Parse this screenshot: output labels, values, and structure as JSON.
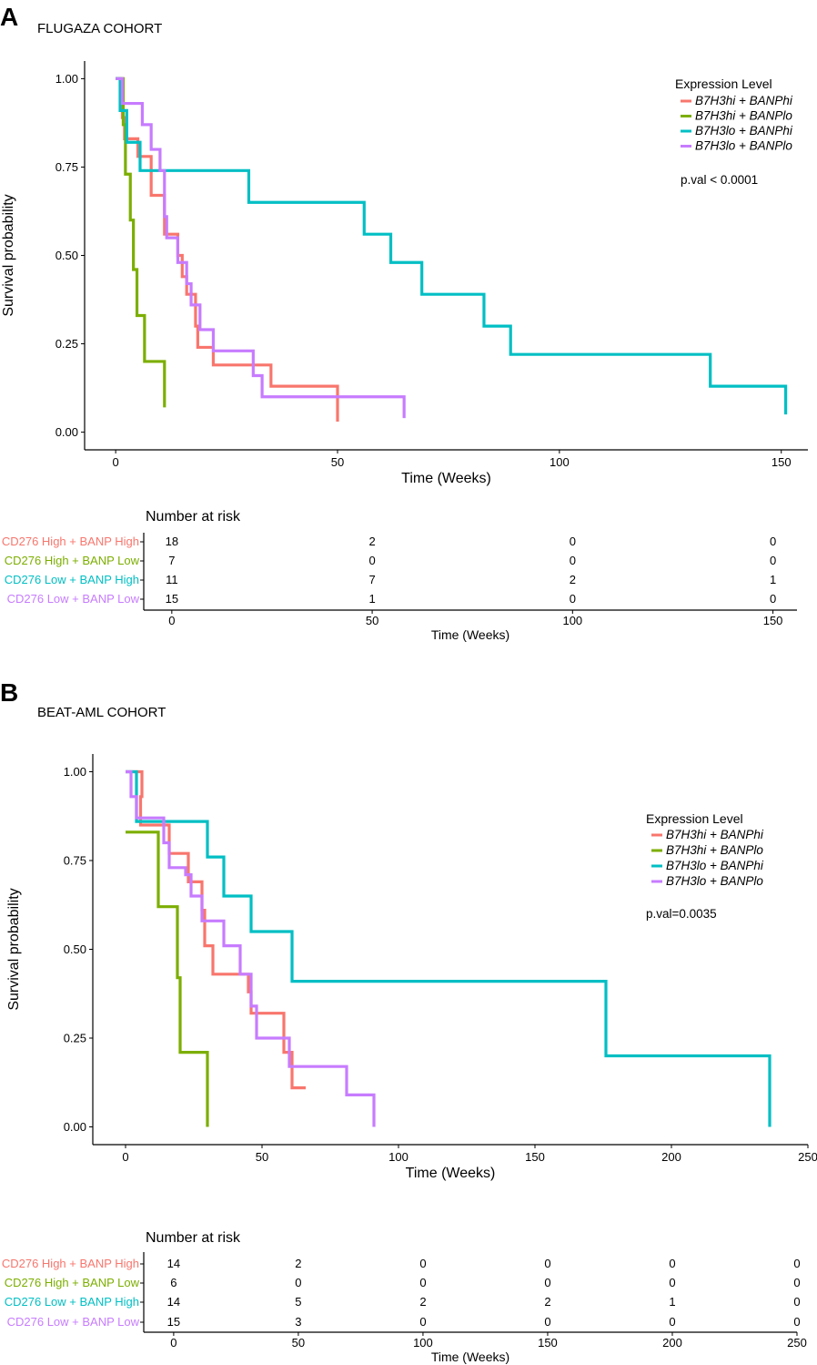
{
  "colors": {
    "B7H3hi_BANPhi": "#f8766d",
    "B7H3hi_BANPlo": "#7cae00",
    "B7H3lo_BANPhi": "#00bfc4",
    "B7H3lo_BANPlo": "#c77cff"
  },
  "chart_data": [
    {
      "panel": "A",
      "type": "line",
      "title": "FLUGAZA COHORT",
      "xlabel": "Time (Weeks)",
      "ylabel": "Survival probability",
      "xlim": [
        -7,
        156
      ],
      "ylim": [
        -0.05,
        1.05
      ],
      "xticks": [
        0,
        50,
        100,
        150
      ],
      "yticks": [
        "0.00",
        "0.25",
        "0.50",
        "0.75",
        "1.00"
      ],
      "legend": {
        "title": "Expression Level",
        "position": "top-right",
        "entries": [
          "B7H3hi + BANPhi",
          "B7H3hi + BANPlo",
          "B7H3lo + BANPhi",
          "B7H3lo + BANPlo"
        ]
      },
      "pval": "p.val < 0.0001",
      "series": [
        {
          "name": "B7H3hi + BANPhi",
          "color_key": "B7H3hi_BANPhi",
          "steps": [
            [
              0,
              1.0
            ],
            [
              1.5,
              0.89
            ],
            [
              2,
              0.83
            ],
            [
              5,
              0.78
            ],
            [
              8,
              0.67
            ],
            [
              11,
              0.56
            ],
            [
              14,
              0.5
            ],
            [
              15,
              0.44
            ],
            [
              16,
              0.39
            ],
            [
              18,
              0.3
            ],
            [
              18.5,
              0.24
            ],
            [
              22,
              0.19
            ],
            [
              35,
              0.13
            ],
            [
              50,
              0.13
            ]
          ],
          "end_x": 50,
          "end_y": 0.03
        },
        {
          "name": "B7H3hi + BANPlo",
          "color_key": "B7H3hi_BANPlo",
          "steps": [
            [
              0,
              1.0
            ],
            [
              1.7,
              0.87
            ],
            [
              2.2,
              0.73
            ],
            [
              3.3,
              0.6
            ],
            [
              4,
              0.46
            ],
            [
              4.8,
              0.33
            ],
            [
              6.5,
              0.2
            ],
            [
              11,
              0.2
            ]
          ],
          "end_x": 11,
          "end_y": 0.07
        },
        {
          "name": "B7H3lo + BANPhi",
          "color_key": "B7H3lo_BANPhi",
          "steps": [
            [
              0,
              1.0
            ],
            [
              1,
              0.91
            ],
            [
              2.5,
              0.82
            ],
            [
              5.5,
              0.74
            ],
            [
              30,
              0.65
            ],
            [
              56,
              0.56
            ],
            [
              62,
              0.48
            ],
            [
              69,
              0.39
            ],
            [
              83,
              0.3
            ],
            [
              89,
              0.22
            ],
            [
              134,
              0.13
            ],
            [
              151,
              0.13
            ]
          ],
          "end_x": 151,
          "end_y": 0.05
        },
        {
          "name": "B7H3lo + BANPlo",
          "color_key": "B7H3lo_BANPlo",
          "steps": [
            [
              0,
              1.0
            ],
            [
              1.5,
              0.93
            ],
            [
              6,
              0.87
            ],
            [
              8,
              0.8
            ],
            [
              10,
              0.74
            ],
            [
              11,
              0.61
            ],
            [
              11.5,
              0.55
            ],
            [
              14,
              0.48
            ],
            [
              16,
              0.42
            ],
            [
              17,
              0.36
            ],
            [
              19,
              0.29
            ],
            [
              22,
              0.23
            ],
            [
              31,
              0.16
            ],
            [
              33,
              0.1
            ],
            [
              65,
              0.1
            ]
          ],
          "end_x": 65,
          "end_y": 0.04
        }
      ]
    },
    {
      "panel": "B",
      "type": "line",
      "title": "BEAT-AML COHORT",
      "xlabel": "Time (Weeks)",
      "ylabel": "Survival probability",
      "xlim": [
        -12,
        250
      ],
      "ylim": [
        -0.05,
        1.05
      ],
      "xticks": [
        0,
        50,
        100,
        150,
        200,
        250
      ],
      "yticks": [
        "0.00",
        "0.25",
        "0.50",
        "0.75",
        "1.00"
      ],
      "legend": {
        "title": "Expression Level",
        "position": "right",
        "entries": [
          "B7H3hi + BANPhi",
          "B7H3hi + BANPlo",
          "B7H3lo + BANPhi",
          "B7H3lo + BANPlo"
        ]
      },
      "pval": "p.val=0.0035",
      "series": [
        {
          "name": "B7H3hi + BANPhi",
          "color_key": "B7H3hi_BANPhi",
          "steps": [
            [
              0,
              1.0
            ],
            [
              6,
              0.93
            ],
            [
              5.5,
              0.85
            ],
            [
              16,
              0.77
            ],
            [
              23,
              0.69
            ],
            [
              28,
              0.61
            ],
            [
              29,
              0.51
            ],
            [
              32,
              0.43
            ],
            [
              45,
              0.38
            ],
            [
              46,
              0.32
            ],
            [
              58,
              0.21
            ],
            [
              61,
              0.11
            ],
            [
              66,
              0.11
            ]
          ],
          "end_x": 66,
          "end_y": 0.11
        },
        {
          "name": "B7H3hi + BANPlo",
          "color_key": "B7H3hi_BANPlo",
          "steps": [
            [
              0,
              0.83
            ],
            [
              12,
              0.62
            ],
            [
              19,
              0.42
            ],
            [
              20,
              0.21
            ],
            [
              30,
              0.21
            ]
          ],
          "end_x": 30,
          "end_y": 0.0
        },
        {
          "name": "B7H3lo + BANPhi",
          "color_key": "B7H3lo_BANPhi",
          "steps": [
            [
              0,
              1.0
            ],
            [
              4,
              0.86
            ],
            [
              30,
              0.76
            ],
            [
              36,
              0.65
            ],
            [
              46,
              0.55
            ],
            [
              61,
              0.41
            ],
            [
              176,
              0.2
            ],
            [
              236,
              0.2
            ]
          ],
          "end_x": 236,
          "end_y": 0.0
        },
        {
          "name": "B7H3lo + BANPlo",
          "color_key": "B7H3lo_BANPlo",
          "steps": [
            [
              0,
              1.0
            ],
            [
              2,
              0.93
            ],
            [
              4,
              0.87
            ],
            [
              14,
              0.8
            ],
            [
              16,
              0.73
            ],
            [
              22,
              0.71
            ],
            [
              24,
              0.65
            ],
            [
              28,
              0.58
            ],
            [
              36,
              0.51
            ],
            [
              42,
              0.43
            ],
            [
              46,
              0.34
            ],
            [
              48,
              0.25
            ],
            [
              60,
              0.17
            ],
            [
              81,
              0.09
            ],
            [
              91,
              0.09
            ]
          ],
          "end_x": 91,
          "end_y": 0.0
        }
      ]
    }
  ],
  "risk_tables": [
    {
      "panel": "A",
      "title": "Number at risk",
      "xlabel": "Time (Weeks)",
      "xlim": [
        -7,
        156
      ],
      "xticks": [
        0,
        50,
        100,
        150
      ],
      "rows": [
        {
          "label": "CD276 High + BANP High",
          "color_key": "B7H3hi_BANPhi",
          "values": [
            "18",
            "2",
            "0",
            "0"
          ]
        },
        {
          "label": "CD276 High + BANP Low",
          "color_key": "B7H3hi_BANPlo",
          "values": [
            "7",
            "0",
            "0",
            "0"
          ]
        },
        {
          "label": "CD276 Low + BANP High",
          "color_key": "B7H3lo_BANPhi",
          "values": [
            "11",
            "7",
            "2",
            "1"
          ]
        },
        {
          "label": "CD276 Low + BANP Low",
          "color_key": "B7H3lo_BANPlo",
          "values": [
            "15",
            "1",
            "0",
            "0"
          ]
        }
      ]
    },
    {
      "panel": "B",
      "title": "Number at risk",
      "xlabel": "Time (Weeks)",
      "xlim": [
        -12,
        250
      ],
      "xticks": [
        0,
        50,
        100,
        150,
        200,
        250
      ],
      "rows": [
        {
          "label": "CD276 High + BANP High",
          "color_key": "B7H3hi_BANPhi",
          "values": [
            "14",
            "2",
            "0",
            "0",
            "0",
            "0"
          ]
        },
        {
          "label": "CD276 High + BANP Low",
          "color_key": "B7H3hi_BANPlo",
          "values": [
            "6",
            "0",
            "0",
            "0",
            "0",
            "0"
          ]
        },
        {
          "label": "CD276 Low + BANP High",
          "color_key": "B7H3lo_BANPhi",
          "values": [
            "14",
            "5",
            "2",
            "2",
            "1",
            "0"
          ]
        },
        {
          "label": "CD276 Low + BANP Low",
          "color_key": "B7H3lo_BANPlo",
          "values": [
            "15",
            "3",
            "0",
            "0",
            "0",
            "0"
          ]
        }
      ]
    }
  ]
}
